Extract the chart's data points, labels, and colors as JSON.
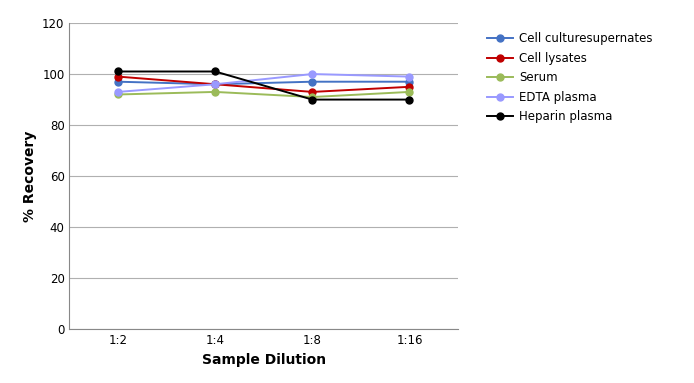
{
  "x_labels": [
    "1:2",
    "1:4",
    "1:8",
    "1:16"
  ],
  "x_values": [
    0,
    1,
    2,
    3
  ],
  "series": [
    {
      "label": "Cell culturesupernates",
      "color": "#4472C4",
      "marker": "o",
      "values": [
        97,
        96,
        97,
        97
      ]
    },
    {
      "label": "Cell lysates",
      "color": "#C00000",
      "marker": "o",
      "values": [
        99,
        96,
        93,
        95
      ]
    },
    {
      "label": "Serum",
      "color": "#9BBB59",
      "marker": "o",
      "values": [
        92,
        93,
        91,
        93
      ]
    },
    {
      "label": "EDTA plasma",
      "color": "#9999FF",
      "marker": "o",
      "values": [
        93,
        96,
        100,
        99
      ]
    },
    {
      "label": "Heparin plasma",
      "color": "#000000",
      "marker": "o",
      "values": [
        101,
        101,
        90,
        90
      ]
    }
  ],
  "ylabel": "% Recovery",
  "xlabel": "Sample Dilution",
  "ylim": [
    0,
    120
  ],
  "yticks": [
    0,
    20,
    40,
    60,
    80,
    100,
    120
  ],
  "background_color": "#ffffff",
  "grid_color": "#b0b0b0",
  "legend_fontsize": 8.5,
  "axis_label_fontsize": 10,
  "tick_fontsize": 8.5,
  "line_width": 1.4,
  "marker_size": 5
}
